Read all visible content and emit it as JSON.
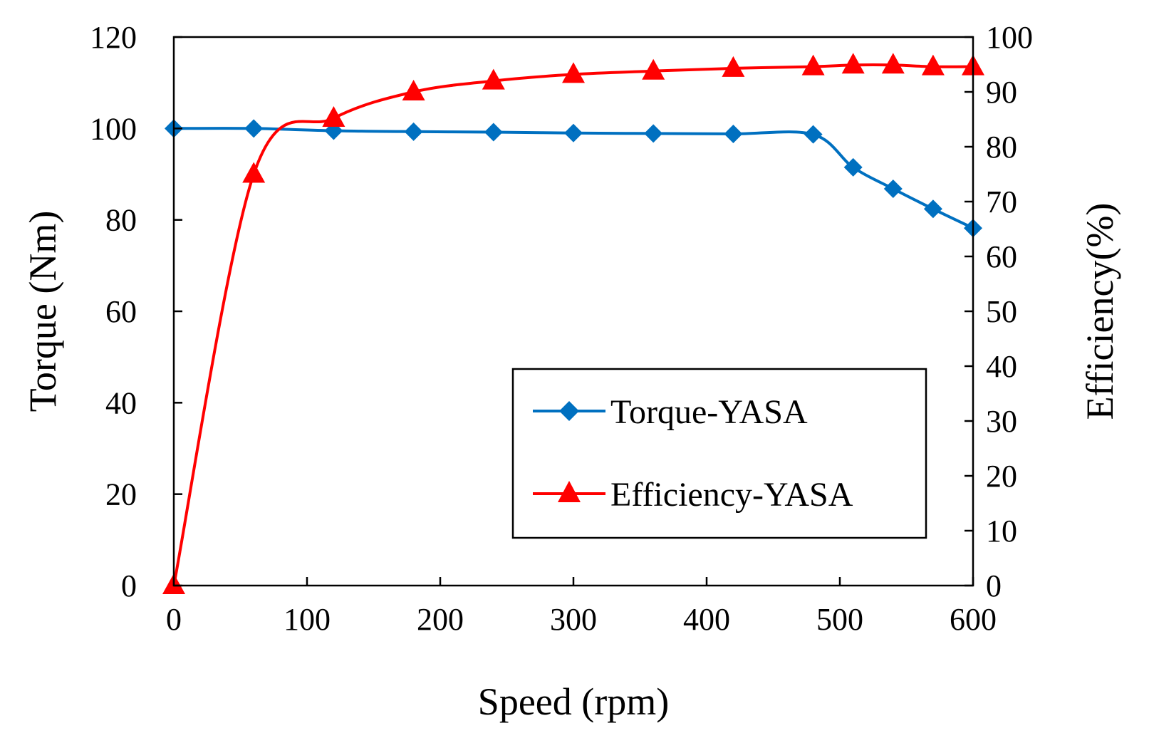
{
  "chart_data": {
    "type": "line",
    "title": "",
    "xlabel": "Speed (rpm)",
    "ylabel_left": "Torque (Nm)",
    "ylabel_right": "Efficiency(%)",
    "xlim": [
      0,
      600
    ],
    "ylim_left": [
      0,
      120
    ],
    "ylim_right": [
      0,
      100
    ],
    "xticks": [
      0,
      100,
      200,
      300,
      400,
      500,
      600
    ],
    "yticks_left": [
      0,
      20,
      40,
      60,
      80,
      100,
      120
    ],
    "yticks_right": [
      0,
      10,
      20,
      30,
      40,
      50,
      60,
      70,
      80,
      90,
      100
    ],
    "grid": false,
    "legend_position": "center-right",
    "series": [
      {
        "name": "Torque-YASA",
        "axis": "left",
        "color": "#0070C0",
        "marker": "diamond",
        "x": [
          0,
          60,
          120,
          180,
          240,
          300,
          360,
          420,
          480,
          510,
          540,
          570,
          600
        ],
        "values": [
          100,
          100,
          99.5,
          99.3,
          99.2,
          99,
          98.9,
          98.8,
          98.7,
          91.5,
          86.8,
          82.4,
          78.2
        ]
      },
      {
        "name": "Efficiency-YASA",
        "axis": "right",
        "color": "#FF0000",
        "marker": "triangle",
        "x": [
          0,
          60,
          120,
          180,
          240,
          300,
          360,
          420,
          480,
          510,
          540,
          570,
          600
        ],
        "values": [
          0,
          75,
          85.2,
          90,
          92,
          93.2,
          93.8,
          94.3,
          94.6,
          94.9,
          94.9,
          94.6,
          94.6
        ]
      }
    ]
  }
}
